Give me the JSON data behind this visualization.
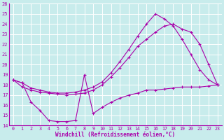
{
  "xlabel": "Windchill (Refroidissement éolien,°C)",
  "background_color": "#c8ecec",
  "line_color": "#aa00aa",
  "grid_color": "#ffffff",
  "xlim": [
    -0.5,
    23.5
  ],
  "ylim": [
    14,
    26
  ],
  "yticks": [
    14,
    15,
    16,
    17,
    18,
    19,
    20,
    21,
    22,
    23,
    24,
    25,
    26
  ],
  "xticks": [
    0,
    1,
    2,
    3,
    4,
    5,
    6,
    7,
    8,
    9,
    10,
    11,
    12,
    13,
    14,
    15,
    16,
    17,
    18,
    19,
    20,
    21,
    22,
    23
  ],
  "line1_x": [
    0,
    1,
    2,
    3,
    4,
    5,
    6,
    7,
    8,
    9,
    10,
    11,
    12,
    13,
    14,
    15,
    16,
    17,
    18,
    19,
    20,
    21,
    22,
    23
  ],
  "line1_y": [
    18.5,
    18.2,
    17.7,
    17.5,
    17.3,
    17.2,
    17.2,
    17.3,
    17.5,
    17.8,
    18.3,
    19.2,
    20.3,
    21.5,
    22.8,
    24.0,
    25.0,
    24.5,
    23.8,
    22.5,
    21.0,
    19.5,
    18.5,
    18.0
  ],
  "line2_x": [
    0,
    1,
    2,
    3,
    4,
    5,
    6,
    7,
    8,
    9,
    10,
    11,
    12,
    13,
    14,
    15,
    16,
    17,
    18,
    19,
    20,
    21,
    22,
    23
  ],
  "line2_y": [
    18.5,
    17.8,
    17.5,
    17.3,
    17.2,
    17.1,
    17.0,
    17.1,
    17.2,
    17.5,
    18.0,
    18.8,
    19.7,
    20.7,
    21.8,
    22.5,
    23.2,
    23.8,
    24.0,
    23.5,
    23.2,
    22.0,
    20.0,
    18.0
  ],
  "line3_x": [
    0,
    1,
    2,
    3,
    4,
    5,
    6,
    7,
    8,
    9,
    10,
    11,
    12,
    13,
    14,
    15,
    16,
    17,
    18,
    19,
    20,
    21,
    22,
    23
  ],
  "line3_y": [
    18.5,
    18.2,
    16.3,
    15.5,
    14.5,
    14.4,
    14.4,
    14.5,
    19.0,
    15.2,
    15.8,
    16.3,
    16.7,
    17.0,
    17.2,
    17.5,
    17.5,
    17.6,
    17.7,
    17.8,
    17.8,
    17.8,
    17.9,
    18.0
  ]
}
